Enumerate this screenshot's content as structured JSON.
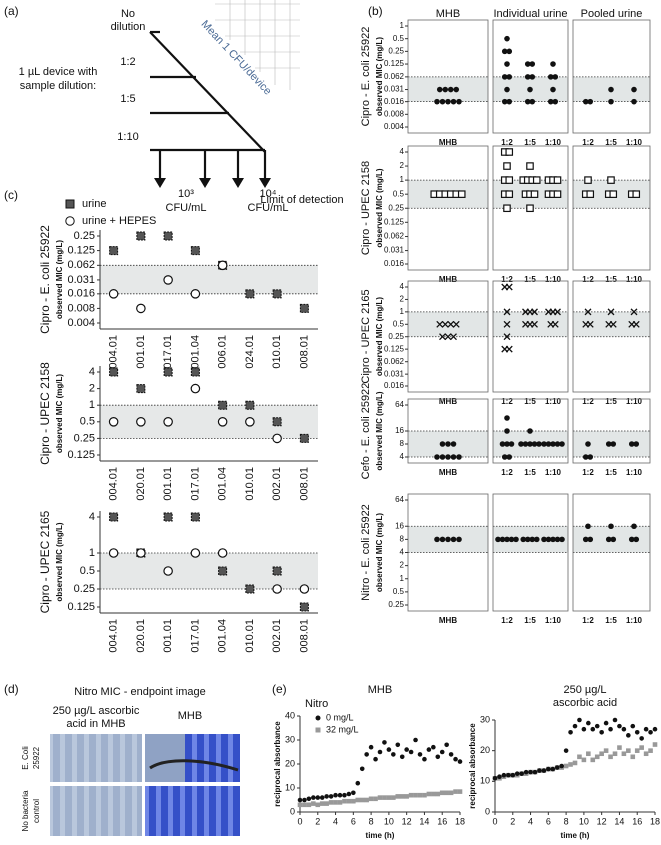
{
  "panel_a": {
    "label": "(a)",
    "device_text": [
      "1 µL device with",
      "sample dilution:"
    ],
    "dilution_first": [
      "No",
      "dilution"
    ],
    "dilutions": [
      "1:2",
      "1:5",
      "1:10"
    ],
    "diagonal": "Mean 1 CFU/device",
    "lod_left": [
      "10³",
      "CFU/mL"
    ],
    "lod_right": [
      "10⁴",
      "CFU/mL"
    ],
    "caption": "Limit of detection"
  },
  "panel_b": {
    "label": "(b)",
    "columns": [
      "MHB",
      "Individual urine",
      "Pooled urine"
    ],
    "ylabel": "observed MIC (mg/L)",
    "log_scale": true,
    "rows": [
      {
        "title": "Cipro - E. coli 25922",
        "marker": "dot",
        "ylim": [
          0.004,
          1
        ],
        "yticks": [
          0.004,
          0.008,
          0.016,
          0.031,
          0.062,
          0.125,
          0.25,
          0.5,
          1
        ],
        "band": [
          0.016,
          0.062
        ],
        "groups": [
          {
            "label": "MHB",
            "values": [
              0.031,
              0.031,
              0.031,
              0.031,
              0.016,
              0.016,
              0.016,
              0.016,
              0.016
            ]
          },
          {
            "label": "1:2",
            "values": [
              0.5,
              0.25,
              0.25,
              0.125,
              0.062,
              0.062,
              0.031,
              0.016,
              0.016
            ]
          },
          {
            "label": "1:5",
            "values": [
              0.125,
              0.125,
              0.062,
              0.062,
              0.031,
              0.016,
              0.016
            ]
          },
          {
            "label": "1:10",
            "values": [
              0.125,
              0.062,
              0.062,
              0.031,
              0.016,
              0.016
            ]
          },
          {
            "label": "1:2",
            "values": [
              0.016,
              0.016
            ]
          },
          {
            "label": "1:5",
            "values": [
              0.031,
              0.016
            ]
          },
          {
            "label": "1:10",
            "values": [
              0.031,
              0.016
            ]
          }
        ]
      },
      {
        "title": "Cipro - UPEC 2158",
        "marker": "square",
        "ylim": [
          0.016,
          4
        ],
        "yticks": [
          0.016,
          0.031,
          0.062,
          0.125,
          0.25,
          0.5,
          1,
          2,
          4
        ],
        "band": [
          0.25,
          1
        ],
        "groups": [
          {
            "label": "MHB",
            "values": [
              0.5,
              0.5,
              0.5,
              0.5,
              0.5,
              0.5
            ]
          },
          {
            "label": "1:2",
            "values": [
              4,
              4,
              2,
              1,
              1,
              0.5,
              0.5,
              0.25
            ]
          },
          {
            "label": "1:5",
            "values": [
              2,
              1,
              1,
              1,
              1,
              0.5,
              0.5,
              0.5,
              0.25
            ]
          },
          {
            "label": "1:10",
            "values": [
              1,
              1,
              1,
              0.5,
              0.5,
              0.5
            ]
          },
          {
            "label": "1:2",
            "values": [
              1,
              0.5,
              0.5
            ]
          },
          {
            "label": "1:5",
            "values": [
              1,
              0.5,
              0.5
            ]
          },
          {
            "label": "1:10",
            "values": [
              0.5,
              0.5
            ]
          }
        ]
      },
      {
        "title": "Cipro - UPEC 2165",
        "marker": "x",
        "ylim": [
          0.016,
          4
        ],
        "yticks": [
          0.016,
          0.031,
          0.062,
          0.125,
          0.25,
          0.5,
          1,
          2,
          4
        ],
        "band": [
          0.25,
          1
        ],
        "groups": [
          {
            "label": "MHB",
            "values": [
              0.5,
              0.5,
              0.5,
              0.5,
              0.25,
              0.25,
              0.25
            ]
          },
          {
            "label": "1:2",
            "values": [
              4,
              4,
              1,
              0.5,
              0.25,
              0.125,
              0.125
            ]
          },
          {
            "label": "1:5",
            "values": [
              1,
              1,
              1,
              0.5,
              0.5,
              0.5
            ]
          },
          {
            "label": "1:10",
            "values": [
              1,
              1,
              1,
              0.5,
              0.5
            ]
          },
          {
            "label": "1:2",
            "values": [
              1,
              0.5,
              0.5
            ]
          },
          {
            "label": "1:5",
            "values": [
              1,
              0.5,
              0.5
            ]
          },
          {
            "label": "1:10",
            "values": [
              1,
              0.5,
              0.5
            ]
          }
        ]
      },
      {
        "title": "Cefo - E. coli 25922",
        "marker": "dot",
        "ylim": [
          4,
          64
        ],
        "yticks": [
          4,
          8,
          16,
          64
        ],
        "band": [
          4,
          16
        ],
        "groups": [
          {
            "label": "MHB",
            "values": [
              8,
              8,
              8,
              4,
              4,
              4,
              4,
              4
            ]
          },
          {
            "label": "1:2",
            "values": [
              32,
              16,
              8,
              8,
              8,
              4,
              4
            ]
          },
          {
            "label": "1:5",
            "values": [
              16,
              8,
              8,
              8,
              8,
              8
            ]
          },
          {
            "label": "1:10",
            "values": [
              8,
              8,
              8,
              8,
              8
            ]
          },
          {
            "label": "1:2",
            "values": [
              8,
              4,
              4
            ]
          },
          {
            "label": "1:5",
            "values": [
              8,
              8
            ]
          },
          {
            "label": "1:10",
            "values": [
              8,
              8
            ]
          }
        ]
      },
      {
        "title": "Nitro - E. coli 25922",
        "marker": "dot",
        "ylim": [
          0.25,
          64
        ],
        "yticks": [
          0.25,
          0.5,
          1,
          2,
          4,
          8,
          16,
          64
        ],
        "band": [
          4,
          16
        ],
        "groups": [
          {
            "label": "MHB",
            "values": [
              8,
              8,
              8,
              8,
              8
            ]
          },
          {
            "label": "1:2",
            "values": [
              8,
              8,
              8,
              8,
              8
            ]
          },
          {
            "label": "1:5",
            "values": [
              8,
              8,
              8,
              8
            ]
          },
          {
            "label": "1:10",
            "values": [
              8,
              8,
              8,
              8,
              8
            ]
          },
          {
            "label": "1:2",
            "values": [
              16,
              8,
              8
            ]
          },
          {
            "label": "1:5",
            "values": [
              16,
              8,
              8
            ]
          },
          {
            "label": "1:10",
            "values": [
              16,
              8,
              8
            ]
          }
        ]
      }
    ]
  },
  "panel_c": {
    "label": "(c)",
    "ylabel": "observed MIC (mg/L)",
    "log_scale": true,
    "plots": [
      {
        "title": "Cipro - E. coli 25922",
        "ylim": [
          0.004,
          0.25
        ],
        "yticks": [
          0.004,
          0.008,
          0.016,
          0.031,
          0.062,
          0.125,
          0.25
        ],
        "band": [
          0.016,
          0.062
        ],
        "categories": [
          "004.01",
          "001.01",
          "017.01",
          "001.04",
          "006.01",
          "024.01",
          "010.01",
          "008.01"
        ],
        "series": [
          {
            "name": "urine",
            "values": [
              0.125,
              0.25,
              0.25,
              0.125,
              0.062,
              0.016,
              0.016,
              0.008
            ]
          },
          {
            "name": "urine + HEPES",
            "values": [
              0.016,
              0.008,
              0.031,
              0.016,
              0.062,
              null,
              null,
              null
            ]
          }
        ]
      },
      {
        "title": "Cipro - UPEC 2158",
        "ylim": [
          0.125,
          4
        ],
        "yticks": [
          0.125,
          0.25,
          0.5,
          1,
          2,
          4
        ],
        "band": [
          0.25,
          1
        ],
        "categories": [
          "004.01",
          "020.01",
          "001.01",
          "017.01",
          "001.04",
          "010.01",
          "002.01",
          "008.01"
        ],
        "series": [
          {
            "name": "urine",
            "values": [
              4,
              2,
              4,
              4,
              1,
              1,
              0.5,
              0.25
            ]
          },
          {
            "name": "urine + HEPES",
            "values": [
              0.5,
              0.5,
              0.5,
              2,
              0.5,
              0.5,
              0.25,
              null
            ]
          }
        ]
      },
      {
        "title": "Cipro - UPEC 2165",
        "ylim": [
          0.125,
          4
        ],
        "yticks": [
          0.125,
          0.25,
          0.5,
          1,
          4
        ],
        "band": [
          0.25,
          1
        ],
        "categories": [
          "004.01",
          "020.01",
          "001.01",
          "017.01",
          "001.04",
          "010.01",
          "002.01",
          "008.01"
        ],
        "series": [
          {
            "name": "urine",
            "values": [
              4,
              1,
              4,
              4,
              0.5,
              0.25,
              0.5,
              0.125
            ]
          },
          {
            "name": "urine + HEPES",
            "values": [
              1,
              1,
              0.5,
              1,
              1,
              null,
              0.25,
              0.25
            ]
          }
        ]
      }
    ]
  },
  "panel_d": {
    "label": "(d)",
    "title": "Nitro MIC -  endpoint image",
    "col_left": [
      "250 µg/L ascorbic",
      "acid in MHB"
    ],
    "col_right": "MHB",
    "row_top": [
      "E. Coli",
      "25922"
    ],
    "row_bottom": [
      "No bacteria",
      "control"
    ]
  },
  "panel_e": {
    "label": "(e)",
    "legend_title": "Nitro",
    "xlabel": "time (h)",
    "ylabel": "reciprocal absorbance",
    "xlim": [
      0,
      18
    ],
    "xticks": [
      0,
      2,
      4,
      6,
      8,
      10,
      12,
      14,
      16,
      18
    ],
    "x": [
      0,
      0.5,
      1,
      1.5,
      2,
      2.5,
      3,
      3.5,
      4,
      4.5,
      5,
      5.5,
      6,
      6.5,
      7,
      7.5,
      8,
      8.5,
      9,
      9.5,
      10,
      10.5,
      11,
      11.5,
      12,
      12.5,
      13,
      13.5,
      14,
      14.5,
      15,
      15.5,
      16,
      16.5,
      17,
      17.5,
      18
    ],
    "plots": [
      {
        "title": [
          "MHB"
        ],
        "ylim": [
          0,
          40
        ],
        "yticks": [
          0,
          10,
          20,
          30,
          40
        ],
        "series": [
          {
            "name": "0 mg/L",
            "color": "#111111",
            "values": [
              5,
              5,
              5.5,
              6,
              6,
              6,
              6.5,
              6.5,
              7,
              7,
              7,
              7.5,
              8,
              12,
              18,
              24,
              27,
              22,
              25,
              29,
              26,
              24,
              28,
              23,
              26,
              25,
              30,
              24,
              22,
              26,
              27,
              23,
              25,
              28,
              24,
              22,
              21
            ]
          },
          {
            "name": "32 mg/L",
            "color": "#999999",
            "values": [
              3,
              3,
              3,
              3.5,
              3,
              3.5,
              3.5,
              4,
              4,
              4,
              4.5,
              4.5,
              4.5,
              5,
              5,
              5,
              5.5,
              5.5,
              6,
              6,
              6,
              6,
              6.5,
              6.5,
              6.5,
              7,
              7,
              7,
              7,
              7.5,
              7.5,
              7.5,
              8,
              8,
              8,
              8.5,
              8.5
            ]
          }
        ]
      },
      {
        "title": [
          "250 µg/L",
          "ascorbic acid"
        ],
        "ylim": [
          0,
          30
        ],
        "yticks": [
          0,
          10,
          20,
          30
        ],
        "series": [
          {
            "name": "0 mg/L",
            "color": "#111111",
            "values": [
              11,
              11.5,
              12,
              12,
              12,
              12.5,
              12.5,
              13,
              13,
              13,
              13.5,
              13.5,
              14,
              14,
              14.5,
              15,
              20,
              26,
              28,
              30,
              27,
              29,
              27,
              28,
              26,
              29,
              27,
              30,
              28,
              27,
              25,
              28,
              26,
              24,
              27,
              26,
              27
            ]
          },
          {
            "name": "32 mg/L",
            "color": "#999999",
            "values": [
              11,
              11,
              11.5,
              12,
              12,
              12,
              12.5,
              12.5,
              13,
              13,
              13.5,
              13.5,
              14,
              14,
              14.5,
              14.5,
              15,
              15.5,
              16,
              18,
              17,
              19,
              17,
              18,
              19,
              20,
              18,
              19,
              21,
              19,
              20,
              18,
              20,
              21,
              19,
              20,
              22
            ]
          }
        ]
      }
    ]
  }
}
